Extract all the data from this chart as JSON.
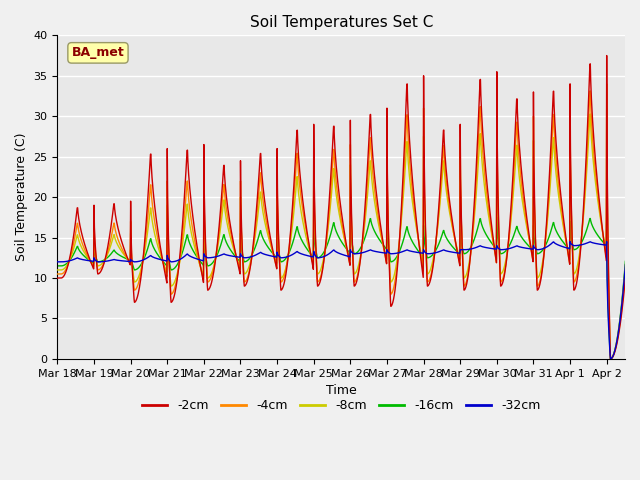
{
  "title": "Soil Temperatures Set C",
  "xlabel": "Time",
  "ylabel": "Soil Temperature (C)",
  "ylim": [
    0,
    40
  ],
  "annotation": "BA_met",
  "colors": {
    "-2cm": "#cc0000",
    "-4cm": "#ff8800",
    "-8cm": "#cccc00",
    "-16cm": "#00bb00",
    "-32cm": "#0000cc"
  },
  "legend_labels": [
    "-2cm",
    "-4cm",
    "-8cm",
    "-16cm",
    "-32cm"
  ],
  "tick_labels": [
    "Mar 18",
    "Mar 19",
    "Mar 20",
    "Mar 21",
    "Mar 22",
    "Mar 23",
    "Mar 24",
    "Mar 25",
    "Mar 26",
    "Mar 27",
    "Mar 28",
    "Mar 29",
    "Mar 30",
    "Mar 31",
    "Apr 1",
    "Apr 2"
  ],
  "background_color": "#e8e8e8",
  "grid_color": "#ffffff",
  "base_temp": 12.0,
  "temp_trend": 0.09,
  "peak_temps_2cm": [
    19.0,
    10.0,
    19.5,
    10.5,
    26.0,
    7.0,
    26.5,
    7.0,
    24.5,
    8.5,
    26.0,
    9.0,
    29.0,
    8.5,
    29.5,
    9.0,
    31.0,
    9.0,
    35.0,
    6.5,
    29.0,
    9.0,
    35.5,
    8.5,
    33.0,
    9.0,
    34.0,
    8.5,
    37.5,
    8.5,
    12.0,
    0.0
  ],
  "peak_temps_4cm": [
    17.0,
    10.5,
    17.0,
    11.0,
    22.0,
    8.5,
    22.5,
    8.0,
    22.0,
    9.5,
    23.5,
    9.5,
    26.0,
    9.5,
    26.5,
    9.5,
    28.0,
    9.5,
    31.0,
    8.0,
    27.0,
    9.5,
    32.0,
    9.0,
    30.0,
    9.5,
    31.0,
    9.0,
    34.0,
    9.5,
    13.0,
    0.0
  ],
  "peak_temps_8cm": [
    15.5,
    11.0,
    15.5,
    11.5,
    19.0,
    9.5,
    19.5,
    9.0,
    20.0,
    10.0,
    21.0,
    10.5,
    23.0,
    10.0,
    24.0,
    10.5,
    25.0,
    10.5,
    27.5,
    9.5,
    25.0,
    10.5,
    28.5,
    10.0,
    27.0,
    10.5,
    28.0,
    10.0,
    31.0,
    10.5,
    14.0,
    0.0
  ],
  "peak_temps_16cm": [
    14.0,
    11.5,
    13.5,
    12.0,
    15.0,
    11.0,
    15.5,
    11.0,
    15.5,
    11.5,
    16.0,
    12.0,
    16.5,
    12.0,
    17.0,
    12.5,
    17.5,
    13.0,
    16.5,
    12.0,
    16.0,
    12.5,
    17.5,
    13.0,
    16.5,
    13.0,
    17.0,
    13.0,
    17.5,
    13.5,
    14.5,
    0.0
  ],
  "peak_temps_32cm": [
    12.5,
    12.0,
    12.3,
    12.0,
    12.8,
    12.0,
    13.0,
    12.0,
    13.0,
    12.5,
    13.2,
    12.5,
    13.3,
    12.5,
    13.5,
    12.5,
    13.5,
    13.0,
    13.5,
    13.0,
    13.5,
    13.0,
    14.0,
    13.5,
    14.0,
    13.5,
    14.5,
    13.5,
    14.5,
    14.0,
    14.0,
    0.0
  ],
  "samples_per_day": 96
}
